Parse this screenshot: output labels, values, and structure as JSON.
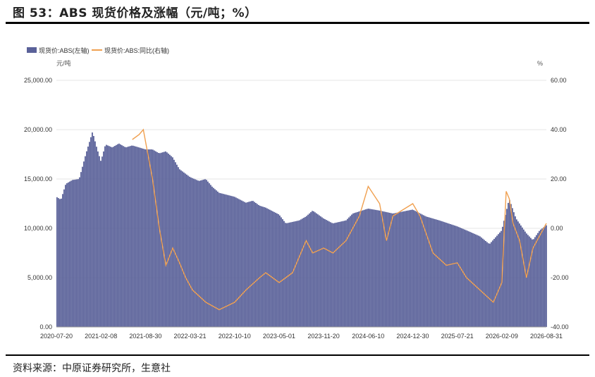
{
  "figure": {
    "title": "图 53：ABS 现货价格及涨幅（元/吨；%）",
    "source": "资料来源：中原证券研究所，生意社"
  },
  "colors": {
    "bars": "#5a6199",
    "line": "#f0a050"
  },
  "chart_data": {
    "type": "bar+line",
    "left_unit": "元/吨",
    "right_unit": "%",
    "legend": [
      "现货价:ABS(左轴)",
      "现货价:ABS:同比(右轴)"
    ],
    "legend_position": "top-left",
    "y_left": {
      "min": 0,
      "max": 25000,
      "ticks": [
        "0.00",
        "5,000.00",
        "10,000.00",
        "15,000.00",
        "20,000.00",
        "25,000.00"
      ]
    },
    "y_right": {
      "min": -40,
      "max": 60,
      "ticks": [
        "-40.00",
        "-20.00",
        "0.00",
        "20.00",
        "40.00",
        "60.00"
      ]
    },
    "x_ticks": [
      "2020-07-20",
      "2021-02-08",
      "2021-08-30",
      "2022-03-21",
      "2022-10-10",
      "2023-05-01",
      "2023-11-20",
      "2024-06-10",
      "2024-12-30",
      "2025-07-21",
      "2026-02-09",
      "2026-08-31"
    ],
    "series": [
      {
        "name": "现货价:ABS(左轴)",
        "axis": "left",
        "kind": "bar",
        "points": [
          [
            "2020-07-20",
            13200
          ],
          [
            "2020-08-10",
            12900
          ],
          [
            "2020-09-01",
            14500
          ],
          [
            "2020-10-01",
            14900
          ],
          [
            "2020-11-01",
            15000
          ],
          [
            "2020-12-01",
            17500
          ],
          [
            "2021-01-01",
            19800
          ],
          [
            "2021-01-20",
            18200
          ],
          [
            "2021-02-08",
            16800
          ],
          [
            "2021-03-01",
            18500
          ],
          [
            "2021-04-01",
            18200
          ],
          [
            "2021-05-01",
            18600
          ],
          [
            "2021-06-01",
            18200
          ],
          [
            "2021-07-01",
            18400
          ],
          [
            "2021-08-01",
            18200
          ],
          [
            "2021-08-30",
            18000
          ],
          [
            "2021-10-01",
            18000
          ],
          [
            "2021-11-01",
            17600
          ],
          [
            "2021-12-01",
            17800
          ],
          [
            "2022-01-01",
            17200
          ],
          [
            "2022-02-01",
            16000
          ],
          [
            "2022-03-21",
            15200
          ],
          [
            "2022-05-01",
            14800
          ],
          [
            "2022-06-01",
            15000
          ],
          [
            "2022-07-01",
            14200
          ],
          [
            "2022-08-01",
            13600
          ],
          [
            "2022-10-10",
            13200
          ],
          [
            "2022-12-01",
            12600
          ],
          [
            "2023-01-01",
            12800
          ],
          [
            "2023-02-01",
            12300
          ],
          [
            "2023-03-01",
            12100
          ],
          [
            "2023-05-01",
            11400
          ],
          [
            "2023-06-01",
            10500
          ],
          [
            "2023-08-01",
            10800
          ],
          [
            "2023-09-01",
            11200
          ],
          [
            "2023-10-01",
            11800
          ],
          [
            "2023-11-20",
            11000
          ],
          [
            "2024-01-01",
            10500
          ],
          [
            "2024-03-01",
            10800
          ],
          [
            "2024-04-01",
            11500
          ],
          [
            "2024-06-10",
            12000
          ],
          [
            "2024-08-01",
            11800
          ],
          [
            "2024-10-01",
            11500
          ],
          [
            "2024-12-30",
            11900
          ],
          [
            "2025-03-01",
            11200
          ],
          [
            "2025-05-01",
            10800
          ],
          [
            "2025-07-21",
            10200
          ],
          [
            "2025-09-01",
            9800
          ],
          [
            "2025-11-01",
            9200
          ],
          [
            "2025-12-15",
            8400
          ],
          [
            "2026-02-09",
            9800
          ],
          [
            "2026-03-15",
            13000
          ],
          [
            "2026-04-15",
            11000
          ],
          [
            "2026-06-01",
            9500
          ],
          [
            "2026-07-01",
            8800
          ],
          [
            "2026-08-01",
            9800
          ],
          [
            "2026-08-31",
            10300
          ]
        ]
      },
      {
        "name": "现货价:ABS:同比(右轴)",
        "axis": "right",
        "kind": "line",
        "points": [
          [
            "2021-07-01",
            36
          ],
          [
            "2021-08-01",
            38
          ],
          [
            "2021-08-20",
            40
          ],
          [
            "2021-09-10",
            30
          ],
          [
            "2021-10-01",
            20
          ],
          [
            "2021-11-01",
            0
          ],
          [
            "2021-12-01",
            -15
          ],
          [
            "2022-01-01",
            -8
          ],
          [
            "2022-02-01",
            -14
          ],
          [
            "2022-03-01",
            -20
          ],
          [
            "2022-04-01",
            -25
          ],
          [
            "2022-06-01",
            -30
          ],
          [
            "2022-08-01",
            -33
          ],
          [
            "2022-10-10",
            -30
          ],
          [
            "2022-12-01",
            -25
          ],
          [
            "2023-02-01",
            -20
          ],
          [
            "2023-03-01",
            -18
          ],
          [
            "2023-05-01",
            -22
          ],
          [
            "2023-07-01",
            -18
          ],
          [
            "2023-09-01",
            -5
          ],
          [
            "2023-10-01",
            -10
          ],
          [
            "2023-11-20",
            -8
          ],
          [
            "2024-01-01",
            -10
          ],
          [
            "2024-03-01",
            -5
          ],
          [
            "2024-05-01",
            5
          ],
          [
            "2024-06-10",
            17
          ],
          [
            "2024-08-01",
            10
          ],
          [
            "2024-09-01",
            -5
          ],
          [
            "2024-10-01",
            5
          ],
          [
            "2024-12-30",
            10
          ],
          [
            "2025-02-01",
            5
          ],
          [
            "2025-04-01",
            -10
          ],
          [
            "2025-06-01",
            -15
          ],
          [
            "2025-07-21",
            -14
          ],
          [
            "2025-09-01",
            -20
          ],
          [
            "2025-11-01",
            -25
          ],
          [
            "2026-01-01",
            -30
          ],
          [
            "2026-02-09",
            -22
          ],
          [
            "2026-03-01",
            15
          ],
          [
            "2026-03-15",
            12
          ],
          [
            "2026-04-01",
            2
          ],
          [
            "2026-05-01",
            -5
          ],
          [
            "2026-06-01",
            -20
          ],
          [
            "2026-07-01",
            -8
          ],
          [
            "2026-08-31",
            2
          ]
        ]
      }
    ]
  }
}
